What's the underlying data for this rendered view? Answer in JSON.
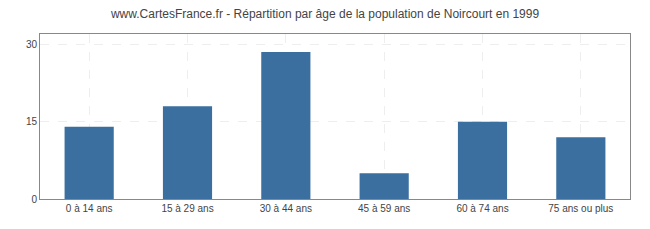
{
  "chart_data": {
    "type": "bar",
    "title": "www.CartesFrance.fr - Répartition par âge de la population de Noircourt en 1999",
    "categories": [
      "0 à 14 ans",
      "15 à 29 ans",
      "30 à 44 ans",
      "45 à 59 ans",
      "60 à 74 ans",
      "75 ans ou plus"
    ],
    "values": [
      14,
      18,
      28.5,
      5,
      15,
      12
    ],
    "color": "#3a6f9f",
    "ylim": [
      0,
      32
    ],
    "yticks": [
      0,
      15,
      30
    ],
    "grid": true
  }
}
